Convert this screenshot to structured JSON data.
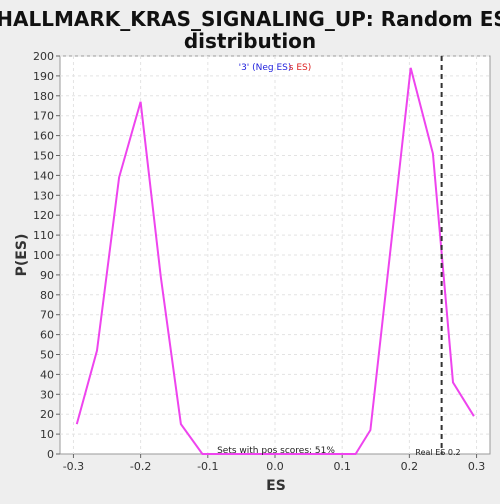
{
  "chart_data": {
    "type": "line",
    "title_line1": "HALLMARK_KRAS_SIGNALING_UP: Random ES",
    "title_line2": "distribution",
    "xlabel": "ES",
    "ylabel": "P(ES)",
    "xlim": [
      -0.32,
      0.32
    ],
    "ylim": [
      0,
      200
    ],
    "x_ticks": [
      -0.3,
      -0.2,
      -0.1,
      0.0,
      0.1,
      0.2,
      0.3
    ],
    "x_tick_labels": [
      "-0.3",
      "-0.2",
      "-0.1",
      "0.0",
      "0.1",
      "0.2",
      "0.3"
    ],
    "y_ticks": [
      0,
      10,
      20,
      30,
      40,
      50,
      60,
      70,
      80,
      90,
      100,
      110,
      120,
      130,
      140,
      150,
      160,
      170,
      180,
      190,
      200
    ],
    "grid": true,
    "series": [
      {
        "color": "#ee44ee",
        "x": [
          -0.295,
          -0.265,
          -0.232,
          -0.2,
          -0.17,
          -0.14,
          -0.108,
          -0.075,
          -0.043,
          -0.01,
          0.022,
          0.055,
          0.087,
          0.12,
          0.142,
          0.202,
          0.235,
          0.265,
          0.296
        ],
        "y": [
          15,
          52,
          139,
          177,
          89,
          15,
          0,
          0,
          0,
          0,
          0,
          0,
          0,
          0,
          12,
          194,
          151,
          36,
          19
        ]
      }
    ],
    "real_es": 0.248,
    "real_es_label": "Real ES 0.2",
    "annotation_neg": "'3' (Neg ES)",
    "annotation_pos": "s ES)",
    "annotation_pos_scores": "Sets with pos scores: 51%",
    "colors": {
      "neg": "#2222dd",
      "pos": "#dd2222",
      "line": "#ee44ee",
      "real_es": "#333333"
    }
  }
}
